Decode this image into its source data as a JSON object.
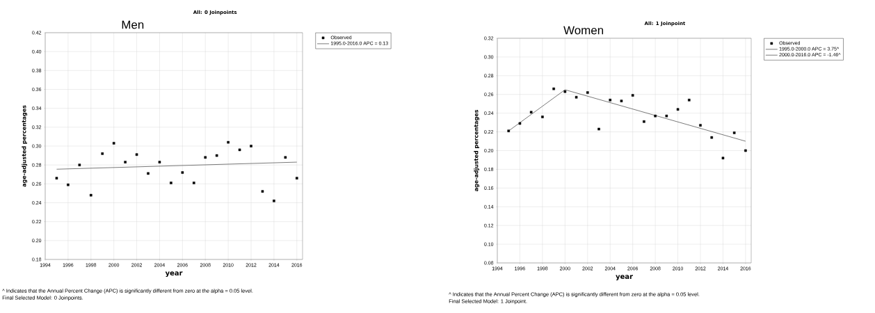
{
  "chart_data": [
    {
      "type": "scatter",
      "title": "Men",
      "subtitle": "All: 0 Joinpoints",
      "xlabel": "year",
      "ylabel": "age-adjusted percentages",
      "x": [
        1995,
        1996,
        1997,
        1998,
        1999,
        2000,
        2001,
        2002,
        2003,
        2004,
        2005,
        2006,
        2007,
        2008,
        2009,
        2010,
        2011,
        2012,
        2013,
        2014,
        2015,
        2016
      ],
      "series": [
        {
          "name": "Observed",
          "marker": "square",
          "color": "#000000",
          "values": [
            0.266,
            0.259,
            0.28,
            0.248,
            0.292,
            0.303,
            0.283,
            0.291,
            0.271,
            0.283,
            0.261,
            0.272,
            0.261,
            0.288,
            0.29,
            0.304,
            0.296,
            0.3,
            0.252,
            0.242,
            0.288,
            0.266
          ]
        },
        {
          "name": "1995.0-2016.0 APC  = 0.13",
          "type": "line",
          "marker": "none",
          "line_style": "solid",
          "color": "#404040",
          "x": [
            1995,
            2016
          ],
          "values": [
            0.2755,
            0.283
          ]
        }
      ],
      "xlim": [
        1994,
        2016.5
      ],
      "xticks": [
        1994,
        1996,
        1998,
        2000,
        2002,
        2004,
        2006,
        2008,
        2010,
        2012,
        2014,
        2016
      ],
      "ylim": [
        0.18,
        0.42
      ],
      "yticks": [
        {
          "value": 0.18,
          "label": "0.18"
        },
        {
          "value": 0.2,
          "label": "0.20"
        },
        {
          "value": 0.22,
          "label": "0.22"
        },
        {
          "value": 0.24,
          "label": "0.24"
        },
        {
          "value": 0.26,
          "label": "0.26"
        },
        {
          "value": 0.28,
          "label": "0.28"
        },
        {
          "value": 0.3,
          "label": "0.30"
        },
        {
          "value": 0.32,
          "label": "0.32"
        },
        {
          "value": 0.34,
          "label": "0.34"
        },
        {
          "value": 0.36,
          "label": "0.36"
        },
        {
          "value": 0.38,
          "label": "0.38"
        },
        {
          "value": 0.4,
          "label": "0.40"
        },
        {
          "value": 0.42,
          "label": "0.42"
        }
      ],
      "grid": true,
      "legend": "right",
      "annotations": [
        "^ Indicates that the Annual Percent Change (APC) is significantly different from zero at the alpha = 0.05 level.",
        "Final Selected Model: 0 Joinpoints."
      ]
    },
    {
      "type": "scatter",
      "title": "Women",
      "subtitle": "All: 1 Joinpoint",
      "xlabel": "year",
      "ylabel": "age-adjusted percentages",
      "x": [
        1995,
        1996,
        1997,
        1998,
        1999,
        2000,
        2001,
        2002,
        2003,
        2004,
        2005,
        2006,
        2007,
        2008,
        2009,
        2010,
        2011,
        2012,
        2013,
        2014,
        2015,
        2016
      ],
      "series": [
        {
          "name": "Observed",
          "marker": "square",
          "color": "#000000",
          "values": [
            0.221,
            0.229,
            0.241,
            0.236,
            0.266,
            0.263,
            0.257,
            0.262,
            0.223,
            0.254,
            0.253,
            0.259,
            0.231,
            0.237,
            0.237,
            0.244,
            0.254,
            0.227,
            0.214,
            0.192,
            0.219,
            0.2
          ]
        },
        {
          "name": "1995.0-2000.0 APC  =  3.75^",
          "type": "line",
          "marker": "none",
          "line_style": "solid",
          "color": "#404040",
          "x": [
            1995,
            2000
          ],
          "values": [
            0.221,
            0.265
          ]
        },
        {
          "name": "2000.0-2016.0 APC  = -1.46^",
          "type": "line",
          "marker": "none",
          "line_style": "solid",
          "color": "#404040",
          "x": [
            2000,
            2016
          ],
          "values": [
            0.265,
            0.21
          ]
        }
      ],
      "xlim": [
        1994,
        2016.5
      ],
      "xticks": [
        1994,
        1996,
        1998,
        2000,
        2002,
        2004,
        2006,
        2008,
        2010,
        2012,
        2014,
        2016
      ],
      "ylim": [
        0.08,
        0.32
      ],
      "yticks": [
        {
          "value": 0.08,
          "label": "0.08"
        },
        {
          "value": 0.1,
          "label": "0.10"
        },
        {
          "value": 0.12,
          "label": "0.12"
        },
        {
          "value": 0.14,
          "label": "0.14"
        },
        {
          "value": 0.16,
          "label": "0.16"
        },
        {
          "value": 0.18,
          "label": "0.18"
        },
        {
          "value": 0.2,
          "label": "0.20"
        },
        {
          "value": 0.22,
          "label": "0.22"
        },
        {
          "value": 0.24,
          "label": "0.24"
        },
        {
          "value": 0.26,
          "label": "0.26"
        },
        {
          "value": 0.28,
          "label": "0.28"
        },
        {
          "value": 0.3,
          "label": "0.30"
        },
        {
          "value": 0.32,
          "label": "0.32"
        }
      ],
      "grid": true,
      "legend": "right",
      "annotations": [
        "^ Indicates that the Annual Percent Change (APC) is significantly different from zero at the alpha = 0.05 level.",
        "Final Selected Model: 1 Joinpoint."
      ]
    }
  ]
}
